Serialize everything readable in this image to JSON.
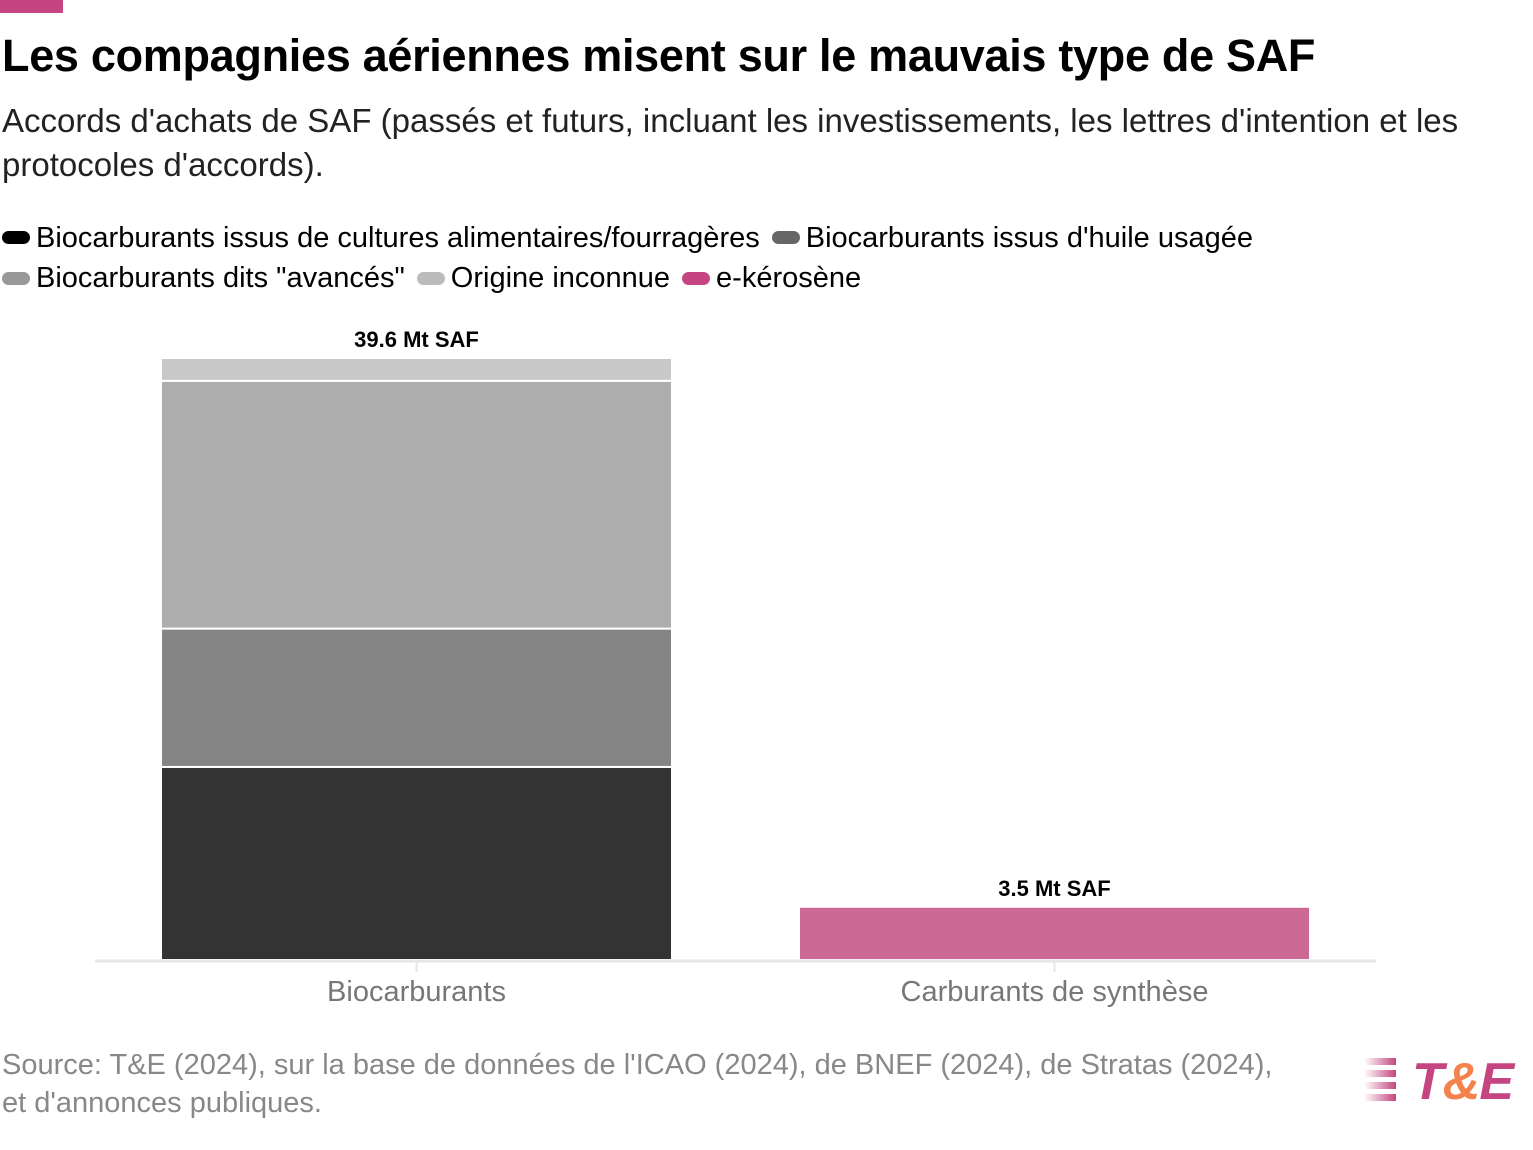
{
  "accent": "#c4457f",
  "title": "Les compagnies aériennes misent sur le mauvais type de SAF",
  "subtitle": "Accords d'achats de SAF (passés et futurs, incluant les investissements, les lettres d'intention et les protocoles d'accords).",
  "source": "Source: T&E (2024), sur la base de données de l'ICAO (2024), de BNEF (2024), de Stratas (2024), et d'annonces publiques.",
  "logo": "T&E",
  "chart_data": {
    "type": "bar",
    "stacked": true,
    "categories": [
      "Biocarburants",
      "Carburants de synthèse"
    ],
    "unit": "Mt SAF",
    "totals_labels": [
      "39.6 Mt SAF",
      "3.5 Mt SAF"
    ],
    "series": [
      {
        "name": "Biocarburants issus de cultures alimentaires/fourragères",
        "color": "#333333",
        "legend_color": "#000000",
        "values": [
          12.7,
          0
        ]
      },
      {
        "name": "Biocarburants issus d'huile usagée",
        "color": "#858585",
        "legend_color": "#666666",
        "values": [
          9.1,
          0
        ]
      },
      {
        "name": "Biocarburants dits \"avancés\"",
        "color": "#adadad",
        "legend_color": "#999999",
        "values": [
          16.3,
          0
        ]
      },
      {
        "name": "Origine inconnue",
        "color": "#c8c8c8",
        "legend_color": "#bbbbbb",
        "values": [
          1.5,
          0
        ]
      },
      {
        "name": "e-kérosène",
        "color": "#cc6894",
        "legend_color": "#c4457f",
        "values": [
          0,
          3.5
        ]
      }
    ],
    "ylim": [
      0,
      39.6
    ],
    "legend": "top",
    "grid": false
  }
}
